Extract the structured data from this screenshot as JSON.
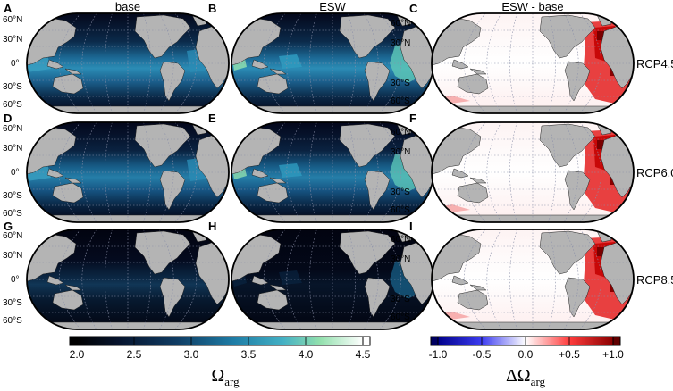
{
  "figure": {
    "columns": [
      {
        "letter_row": [
          "A",
          "D",
          "G"
        ],
        "title": "base"
      },
      {
        "letter_row": [
          "B",
          "E",
          "H"
        ],
        "title": "ESW"
      },
      {
        "letter_row": [
          "C",
          "F",
          "I"
        ],
        "title": "ESW - base"
      }
    ],
    "scenarios": [
      "RCP4.5",
      "RCP6.0",
      "RCP8.5"
    ],
    "lat_labels": [
      "60°N",
      "30°N",
      "0°",
      "30°S",
      "60°S"
    ],
    "colors": {
      "land": "#b4b4b4",
      "ocean_dark": "#05081c",
      "ocean_mid": "#1a5b8a",
      "ocean_high": "#4ab0c8",
      "ocean_peak": "#9de6b0",
      "diff_zero": "#ffffff",
      "diff_pos": "#c40000",
      "diff_neg": "#0000b0",
      "grid": "#8a8fa8",
      "outline": "#000000"
    }
  },
  "colorbar_omega": {
    "ticks": [
      "2.0",
      "2.5",
      "3.0",
      "3.5",
      "4.0",
      "4.5"
    ],
    "range": [
      2.0,
      4.5
    ],
    "label_main": "Ω",
    "label_sub": "arg"
  },
  "colorbar_delta": {
    "ticks": [
      "-1.0",
      "-0.5",
      "0.0",
      "+0.5",
      "+1.0"
    ],
    "range": [
      -1.0,
      1.0
    ],
    "label_main": "ΔΩ",
    "label_sub": "arg"
  },
  "chart_data": [
    {
      "type": "heatmap",
      "title": "base",
      "series": [
        {
          "name": "RCP4.5",
          "omega_max_equatorial": 3.5
        },
        {
          "name": "RCP6.0",
          "omega_max_equatorial": 3.3
        },
        {
          "name": "RCP8.5",
          "omega_max_equatorial": 2.6
        }
      ],
      "colorbar_range": [
        2.0,
        4.5
      ]
    },
    {
      "type": "heatmap",
      "title": "ESW",
      "series": [
        {
          "name": "RCP4.5",
          "omega_max_equatorial": 4.3
        },
        {
          "name": "RCP6.0",
          "omega_max_equatorial": 4.2
        },
        {
          "name": "RCP8.5",
          "omega_max_equatorial": 3.4
        }
      ],
      "colorbar_range": [
        2.0,
        4.5
      ]
    },
    {
      "type": "heatmap",
      "title": "ESW - base",
      "series": [
        {
          "name": "RCP4.5",
          "delta_max_atlantic": 1.0
        },
        {
          "name": "RCP6.0",
          "delta_max_atlantic": 1.0
        },
        {
          "name": "RCP8.5",
          "delta_max_atlantic": 1.0
        }
      ],
      "colorbar_range": [
        -1.0,
        1.0
      ]
    }
  ]
}
